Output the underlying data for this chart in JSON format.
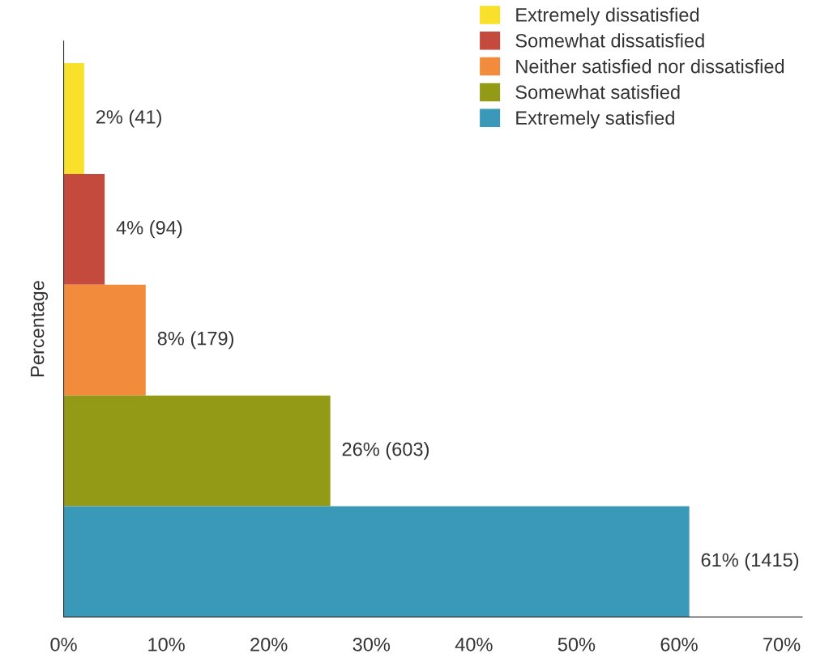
{
  "chart_data": {
    "type": "bar",
    "orientation": "horizontal",
    "ylabel": "Percentage",
    "categories": [
      null,
      null,
      null,
      null,
      null
    ],
    "series": [
      {
        "name": "Extremely dissatisfied",
        "color": "#f9e02a",
        "values": [
          2,
          null,
          null,
          null,
          null
        ],
        "value_labels": [
          "2% (41)",
          null,
          null,
          null,
          null
        ]
      },
      {
        "name": "Somewhat dissatisfied",
        "color": "#c44a3e",
        "values": [
          null,
          4,
          null,
          null,
          null
        ],
        "value_labels": [
          null,
          "4% (94)",
          null,
          null,
          null
        ]
      },
      {
        "name": "Neither satisfied nor dissatisfied",
        "color": "#f28c3c",
        "values": [
          null,
          null,
          8,
          null,
          null
        ],
        "value_labels": [
          null,
          null,
          "8% (179)",
          null,
          null
        ]
      },
      {
        "name": "Somewhat satisfied",
        "color": "#939a15",
        "values": [
          null,
          null,
          null,
          26,
          null
        ],
        "value_labels": [
          null,
          null,
          null,
          "26% (603)",
          null
        ]
      },
      {
        "name": "Extremely satisfied",
        "color": "#3a99b8",
        "values": [
          null,
          null,
          null,
          null,
          61
        ],
        "value_labels": [
          null,
          null,
          null,
          null,
          "61% (1415)"
        ]
      }
    ],
    "xlim": [
      0,
      72
    ],
    "xticks": [
      {
        "value": 0,
        "label": "0%"
      },
      {
        "value": 10,
        "label": "10%"
      },
      {
        "value": 20,
        "label": "20%"
      },
      {
        "value": 30,
        "label": "30%"
      },
      {
        "value": 40,
        "label": "40%"
      },
      {
        "value": 50,
        "label": "50%"
      },
      {
        "value": 60,
        "label": "60%"
      },
      {
        "value": 70,
        "label": "70%"
      }
    ],
    "tick_labels": "x",
    "grid": false,
    "legend": "top right"
  }
}
